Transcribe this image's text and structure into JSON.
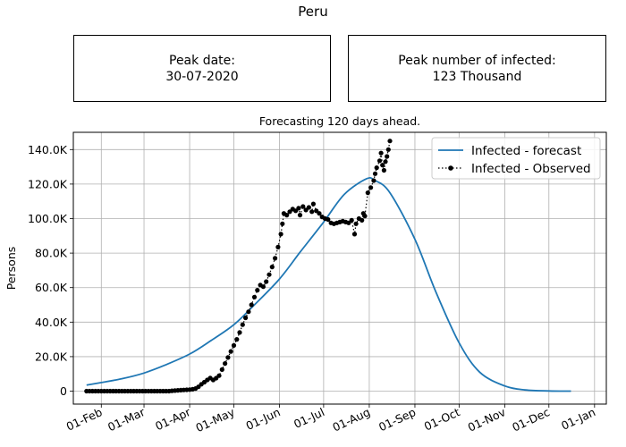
{
  "title": "Peru",
  "info": {
    "peak_date_label": "Peak date:",
    "peak_date_value": "30-07-2020",
    "peak_number_label": "Peak number of infected:",
    "peak_number_value": "123 Thousand"
  },
  "chart_data": {
    "type": "line",
    "title": "Forecasting 120 days ahead.",
    "xlabel": "",
    "ylabel": "Persons",
    "x_unit": "date (2020)",
    "xlim": [
      "2020-01-13",
      "2021-01-09"
    ],
    "ylim": [
      -7500,
      150000
    ],
    "x_ticks": [
      {
        "date": "2020-02-01",
        "label": "01-Feb"
      },
      {
        "date": "2020-03-01",
        "label": "01-Mar"
      },
      {
        "date": "2020-04-01",
        "label": "01-Apr"
      },
      {
        "date": "2020-05-01",
        "label": "01-May"
      },
      {
        "date": "2020-06-01",
        "label": "01-Jun"
      },
      {
        "date": "2020-07-01",
        "label": "01-Jul"
      },
      {
        "date": "2020-08-01",
        "label": "01-Aug"
      },
      {
        "date": "2020-09-01",
        "label": "01-Sep"
      },
      {
        "date": "2020-10-01",
        "label": "01-Oct"
      },
      {
        "date": "2020-11-01",
        "label": "01-Nov"
      },
      {
        "date": "2020-12-01",
        "label": "01-Dec"
      },
      {
        "date": "2021-01-01",
        "label": "01-Jan"
      }
    ],
    "y_ticks": [
      {
        "value": 0,
        "label": "0"
      },
      {
        "value": 20000,
        "label": "20.0K"
      },
      {
        "value": 40000,
        "label": "40.0K"
      },
      {
        "value": 60000,
        "label": "60.0K"
      },
      {
        "value": 80000,
        "label": "80.0K"
      },
      {
        "value": 100000,
        "label": "100.0K"
      },
      {
        "value": 120000,
        "label": "120.0K"
      },
      {
        "value": 140000,
        "label": "140.0K"
      }
    ],
    "grid": true,
    "legend_position": "top-right",
    "series": [
      {
        "name": "Infected - forecast",
        "style": "solid line",
        "color": "#1f77b4",
        "points": [
          [
            "2020-01-22",
            3500
          ],
          [
            "2020-02-01",
            5000
          ],
          [
            "2020-02-15",
            7200
          ],
          [
            "2020-03-01",
            10500
          ],
          [
            "2020-03-15",
            15000
          ],
          [
            "2020-04-01",
            21500
          ],
          [
            "2020-04-15",
            29000
          ],
          [
            "2020-05-01",
            38500
          ],
          [
            "2020-05-15",
            50000
          ],
          [
            "2020-06-01",
            65000
          ],
          [
            "2020-06-15",
            80500
          ],
          [
            "2020-07-01",
            98000
          ],
          [
            "2020-07-15",
            114000
          ],
          [
            "2020-07-30",
            123000
          ],
          [
            "2020-08-05",
            122000
          ],
          [
            "2020-08-15",
            115000
          ],
          [
            "2020-09-01",
            88000
          ],
          [
            "2020-09-15",
            58000
          ],
          [
            "2020-10-01",
            28000
          ],
          [
            "2020-10-15",
            11000
          ],
          [
            "2020-11-01",
            3000
          ],
          [
            "2020-11-15",
            700
          ],
          [
            "2020-12-01",
            100
          ],
          [
            "2020-12-16",
            0
          ]
        ]
      },
      {
        "name": "Infected - Observed",
        "style": "dotted line with circle markers",
        "color": "#000000",
        "points": [
          [
            "2020-01-22",
            0
          ],
          [
            "2020-01-24",
            0
          ],
          [
            "2020-01-26",
            0
          ],
          [
            "2020-01-28",
            0
          ],
          [
            "2020-01-30",
            0
          ],
          [
            "2020-02-01",
            0
          ],
          [
            "2020-02-03",
            0
          ],
          [
            "2020-02-05",
            0
          ],
          [
            "2020-02-07",
            0
          ],
          [
            "2020-02-09",
            0
          ],
          [
            "2020-02-11",
            0
          ],
          [
            "2020-02-13",
            0
          ],
          [
            "2020-02-15",
            0
          ],
          [
            "2020-02-17",
            0
          ],
          [
            "2020-02-19",
            0
          ],
          [
            "2020-02-21",
            0
          ],
          [
            "2020-02-23",
            0
          ],
          [
            "2020-02-25",
            0
          ],
          [
            "2020-02-27",
            0
          ],
          [
            "2020-02-29",
            0
          ],
          [
            "2020-03-02",
            0
          ],
          [
            "2020-03-04",
            0
          ],
          [
            "2020-03-06",
            0
          ],
          [
            "2020-03-08",
            0
          ],
          [
            "2020-03-10",
            0
          ],
          [
            "2020-03-12",
            0
          ],
          [
            "2020-03-14",
            0
          ],
          [
            "2020-03-16",
            0
          ],
          [
            "2020-03-18",
            0
          ],
          [
            "2020-03-20",
            200
          ],
          [
            "2020-03-22",
            300
          ],
          [
            "2020-03-24",
            500
          ],
          [
            "2020-03-26",
            600
          ],
          [
            "2020-03-28",
            700
          ],
          [
            "2020-03-30",
            800
          ],
          [
            "2020-04-01",
            900
          ],
          [
            "2020-04-03",
            1100
          ],
          [
            "2020-04-05",
            1500
          ],
          [
            "2020-04-07",
            2500
          ],
          [
            "2020-04-09",
            4000
          ],
          [
            "2020-04-11",
            5200
          ],
          [
            "2020-04-13",
            6500
          ],
          [
            "2020-04-15",
            7600
          ],
          [
            "2020-04-17",
            6500
          ],
          [
            "2020-04-19",
            7500
          ],
          [
            "2020-04-21",
            9000
          ],
          [
            "2020-04-23",
            12500
          ],
          [
            "2020-04-25",
            16000
          ],
          [
            "2020-04-27",
            19500
          ],
          [
            "2020-04-29",
            23000
          ],
          [
            "2020-05-01",
            26500
          ],
          [
            "2020-05-03",
            30000
          ],
          [
            "2020-05-05",
            34000
          ],
          [
            "2020-05-07",
            38500
          ],
          [
            "2020-05-09",
            42500
          ],
          [
            "2020-05-11",
            46000
          ],
          [
            "2020-05-13",
            50000
          ],
          [
            "2020-05-15",
            54500
          ],
          [
            "2020-05-17",
            58500
          ],
          [
            "2020-05-19",
            61500
          ],
          [
            "2020-05-21",
            60500
          ],
          [
            "2020-05-23",
            63500
          ],
          [
            "2020-05-25",
            67500
          ],
          [
            "2020-05-27",
            72000
          ],
          [
            "2020-05-29",
            77000
          ],
          [
            "2020-05-31",
            83500
          ],
          [
            "2020-06-02",
            91000
          ],
          [
            "2020-06-03",
            97000
          ],
          [
            "2020-06-04",
            103000
          ],
          [
            "2020-06-06",
            102000
          ],
          [
            "2020-06-08",
            104000
          ],
          [
            "2020-06-10",
            105500
          ],
          [
            "2020-06-12",
            104500
          ],
          [
            "2020-06-14",
            106000
          ],
          [
            "2020-06-15",
            102000
          ],
          [
            "2020-06-17",
            107000
          ],
          [
            "2020-06-19",
            105000
          ],
          [
            "2020-06-21",
            106500
          ],
          [
            "2020-06-23",
            104000
          ],
          [
            "2020-06-24",
            108500
          ],
          [
            "2020-06-26",
            104500
          ],
          [
            "2020-06-28",
            103000
          ],
          [
            "2020-06-30",
            101000
          ],
          [
            "2020-07-02",
            100000
          ],
          [
            "2020-07-04",
            99500
          ],
          [
            "2020-07-06",
            97500
          ],
          [
            "2020-07-08",
            97000
          ],
          [
            "2020-07-10",
            97500
          ],
          [
            "2020-07-12",
            98000
          ],
          [
            "2020-07-14",
            98500
          ],
          [
            "2020-07-16",
            98000
          ],
          [
            "2020-07-18",
            97500
          ],
          [
            "2020-07-20",
            99000
          ],
          [
            "2020-07-22",
            91000
          ],
          [
            "2020-07-23",
            97000
          ],
          [
            "2020-07-25",
            100000
          ],
          [
            "2020-07-27",
            99000
          ],
          [
            "2020-07-28",
            103000
          ],
          [
            "2020-07-29",
            101500
          ],
          [
            "2020-07-31",
            115000
          ],
          [
            "2020-08-02",
            118000
          ],
          [
            "2020-08-04",
            122000
          ],
          [
            "2020-08-05",
            126000
          ],
          [
            "2020-08-06",
            129500
          ],
          [
            "2020-08-08",
            133500
          ],
          [
            "2020-08-09",
            138000
          ],
          [
            "2020-08-10",
            131000
          ],
          [
            "2020-08-11",
            128000
          ],
          [
            "2020-08-12",
            133000
          ],
          [
            "2020-08-13",
            136000
          ],
          [
            "2020-08-14",
            140000
          ],
          [
            "2020-08-15",
            145000
          ]
        ]
      }
    ]
  }
}
